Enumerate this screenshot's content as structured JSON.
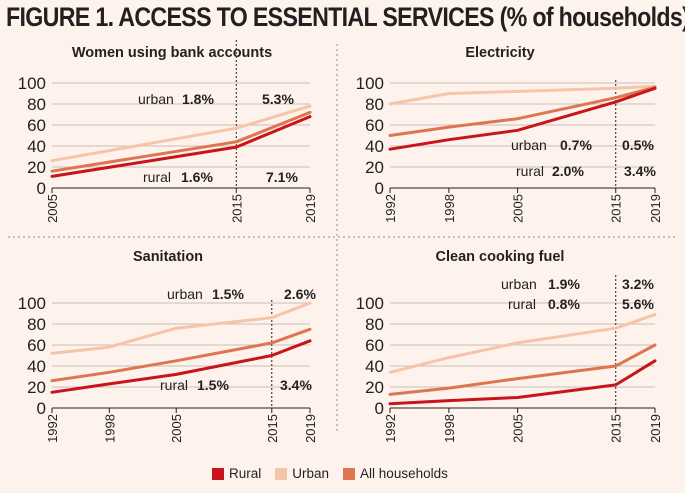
{
  "title": "FIGURE 1. ACCESS TO ESSENTIAL SERVICES (% of households)",
  "colors": {
    "rural": "#c8151b",
    "urban": "#f6c4a8",
    "all": "#dd7650"
  },
  "legend": [
    {
      "key": "rural",
      "label": "Rural"
    },
    {
      "key": "urban",
      "label": "Urban"
    },
    {
      "key": "all",
      "label": "All households"
    }
  ],
  "chart_data": [
    {
      "type": "line",
      "title": "Women using bank accounts",
      "x": [
        2005,
        2015,
        2019
      ],
      "ylim": [
        0,
        100
      ],
      "yticks": [
        0,
        20,
        40,
        60,
        80,
        100
      ],
      "series": [
        {
          "name": "Rural",
          "key": "rural",
          "values": [
            11,
            39,
            68
          ]
        },
        {
          "name": "Urban",
          "key": "urban",
          "values": [
            26,
            57,
            78
          ]
        },
        {
          "name": "All households",
          "key": "all",
          "values": [
            16,
            44,
            72
          ]
        }
      ],
      "annotations": {
        "urban": "urban",
        "urban_left": "1.8%",
        "urban_right": "5.3%",
        "rural": "rural",
        "rural_left": "1.6%",
        "rural_right": "7.1%"
      }
    },
    {
      "type": "line",
      "title": "Electricity",
      "x": [
        1992,
        1998,
        2005,
        2015,
        2019
      ],
      "ylim": [
        0,
        100
      ],
      "yticks": [
        0,
        20,
        40,
        60,
        80,
        100
      ],
      "series": [
        {
          "name": "Rural",
          "key": "rural",
          "values": [
            37,
            46,
            55,
            82,
            95
          ]
        },
        {
          "name": "Urban",
          "key": "urban",
          "values": [
            80,
            90,
            92,
            95,
            97
          ]
        },
        {
          "name": "All households",
          "key": "all",
          "values": [
            50,
            58,
            66,
            86,
            96
          ]
        }
      ],
      "annotations": {
        "urban": "urban",
        "urban_left": "0.7%",
        "urban_right": "0.5%",
        "rural": "rural",
        "rural_left": "2.0%",
        "rural_right": "3.4%"
      }
    },
    {
      "type": "line",
      "title": "Sanitation",
      "x": [
        1992,
        1998,
        2005,
        2015,
        2019
      ],
      "ylim": [
        0,
        100
      ],
      "yticks": [
        0,
        20,
        40,
        60,
        80,
        100
      ],
      "series": [
        {
          "name": "Rural",
          "key": "rural",
          "values": [
            15,
            23,
            32,
            50,
            64
          ]
        },
        {
          "name": "Urban",
          "key": "urban",
          "values": [
            52,
            58,
            76,
            86,
            100
          ]
        },
        {
          "name": "All households",
          "key": "all",
          "values": [
            26,
            34,
            45,
            62,
            75
          ]
        }
      ],
      "annotations": {
        "urban": "urban",
        "urban_left": "1.5%",
        "urban_right": "2.6%",
        "rural": "rural",
        "rural_left": "1.5%",
        "rural_right": "3.4%"
      }
    },
    {
      "type": "line",
      "title": "Clean cooking fuel",
      "x": [
        1992,
        1998,
        2005,
        2015,
        2019
      ],
      "ylim": [
        0,
        100
      ],
      "yticks": [
        0,
        20,
        40,
        60,
        80,
        100
      ],
      "series": [
        {
          "name": "Rural",
          "key": "rural",
          "values": [
            4,
            7,
            10,
            22,
            45
          ]
        },
        {
          "name": "Urban",
          "key": "urban",
          "values": [
            34,
            48,
            62,
            76,
            89
          ]
        },
        {
          "name": "All households",
          "key": "all",
          "values": [
            13,
            19,
            28,
            40,
            60
          ]
        }
      ],
      "annotations": {
        "urban": "urban",
        "urban_left": "1.9%",
        "urban_right": "3.2%",
        "rural": "rural",
        "rural_left": "0.8%",
        "rural_right": "5.6%"
      }
    }
  ]
}
